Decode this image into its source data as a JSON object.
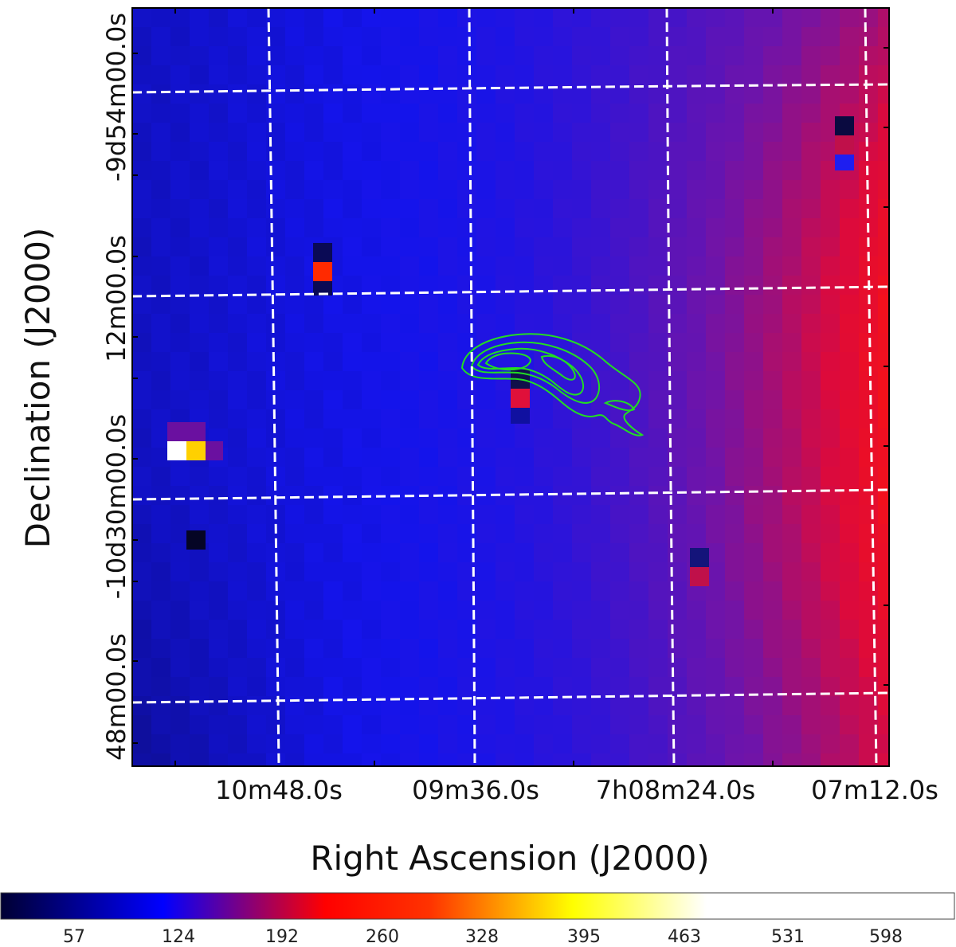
{
  "chart_data": {
    "type": "heatmap",
    "title": "",
    "xlabel": "Right Ascension (J2000)",
    "ylabel": "Declination (J2000)",
    "x_tick_labels": [
      "10m48.0s",
      "09m36.0s",
      "7h08m24.0s",
      "07m12.0s"
    ],
    "y_tick_labels": [
      "-9d54m00.0s",
      "12m00.0s",
      "-10d30m00.0s",
      "48m00.0s"
    ],
    "grid": true,
    "grid_style": "dashed-white",
    "colorbar": {
      "orientation": "horizontal",
      "position": "bottom",
      "tick_labels": [
        "57",
        "124",
        "192",
        "260",
        "328",
        "395",
        "463",
        "531",
        "598"
      ],
      "colors": [
        "#000033",
        "#0000ff",
        "#ff0000",
        "#ffff00",
        "#ffffff"
      ]
    },
    "contour_color": "#22dd22",
    "map_description_notes": "Smooth background rising from ~90 (upper-left, blue) to ~260 (right edge, red); compact sources near left edge (~450-600), a few red pixels scattered; green contours near the center."
  }
}
